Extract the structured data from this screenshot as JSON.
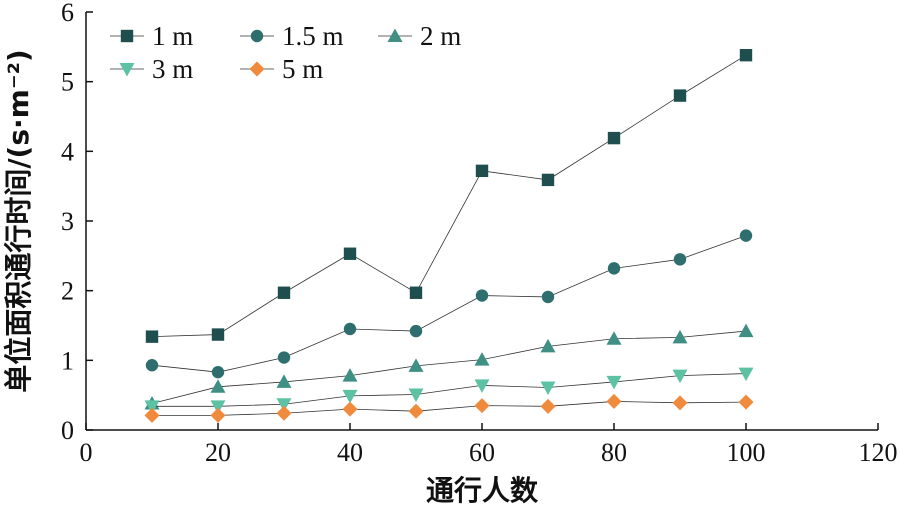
{
  "chart_data": {
    "type": "line",
    "title": "",
    "xlabel": "通行人数",
    "ylabel": "单位面积通行时间/(s·m⁻²)",
    "xlim": [
      0,
      120
    ],
    "ylim": [
      0,
      6
    ],
    "xticks": [
      0,
      20,
      40,
      60,
      80,
      100,
      120
    ],
    "yticks": [
      0,
      1,
      2,
      3,
      4,
      5,
      6
    ],
    "grid": false,
    "legend_position": "top-left",
    "x": [
      10,
      20,
      30,
      40,
      50,
      60,
      70,
      80,
      90,
      100
    ],
    "series": [
      {
        "name": "1 m",
        "marker": "square",
        "color": "#1f4e4e",
        "values": [
          1.34,
          1.37,
          1.97,
          2.53,
          1.97,
          3.72,
          3.59,
          4.19,
          4.8,
          5.38
        ]
      },
      {
        "name": "1.5 m",
        "marker": "circle",
        "color": "#2e6e6e",
        "values": [
          0.93,
          0.83,
          1.04,
          1.45,
          1.42,
          1.93,
          1.91,
          2.32,
          2.45,
          2.79
        ]
      },
      {
        "name": "2 m",
        "marker": "triangle-up",
        "color": "#3f8f84",
        "values": [
          0.38,
          0.62,
          0.69,
          0.78,
          0.92,
          1.01,
          1.2,
          1.31,
          1.33,
          1.42
        ]
      },
      {
        "name": "3 m",
        "marker": "triangle-down",
        "color": "#5cc2a3",
        "values": [
          0.34,
          0.34,
          0.37,
          0.49,
          0.51,
          0.64,
          0.61,
          0.69,
          0.78,
          0.81
        ]
      },
      {
        "name": "5 m",
        "marker": "diamond",
        "color": "#f08a3c",
        "values": [
          0.21,
          0.21,
          0.24,
          0.3,
          0.27,
          0.35,
          0.34,
          0.41,
          0.39,
          0.4
        ]
      }
    ]
  }
}
